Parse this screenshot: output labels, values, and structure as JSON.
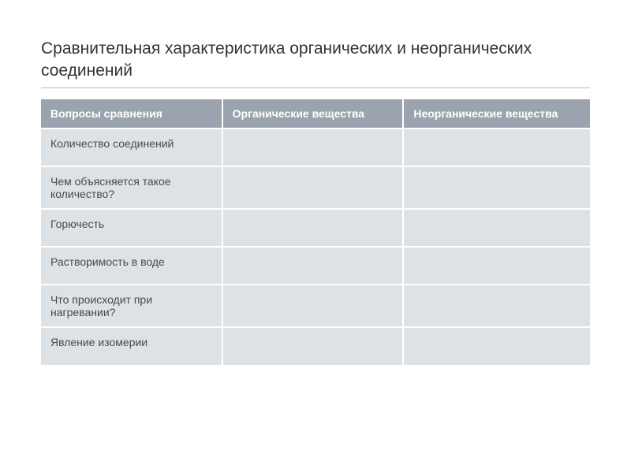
{
  "title": "Сравнительная характеристика органических и неорганических соединений",
  "table": {
    "type": "table",
    "header_bg": "#9ba4ae",
    "header_text_color": "#ffffff",
    "cell_bg": "#dde2e7",
    "cell_text_color": "#4a4a4a",
    "border_color": "#ffffff",
    "font_size_header": 14,
    "font_size_cell": 14,
    "columns": [
      {
        "label": "Вопросы сравнения",
        "width": "33%"
      },
      {
        "label": "Органические вещества",
        "width": "33%"
      },
      {
        "label": "Неорганические вещества",
        "width": "34%"
      }
    ],
    "rows": [
      {
        "question": "Количество соединений",
        "organic": "",
        "inorganic": ""
      },
      {
        "question": "Чем объясняется такое количество?",
        "organic": "",
        "inorganic": ""
      },
      {
        "question": "Горючесть",
        "organic": "",
        "inorganic": ""
      },
      {
        "question": "Растворимость в воде",
        "organic": "",
        "inorganic": ""
      },
      {
        "question": "Что происходит при нагревании?",
        "organic": "",
        "inorganic": ""
      },
      {
        "question": "Явление изомерии",
        "organic": "",
        "inorganic": ""
      }
    ]
  },
  "style": {
    "background_color": "#ffffff",
    "title_color": "#333333",
    "title_fontsize": 21,
    "underline_color": "#b9b9b9"
  }
}
